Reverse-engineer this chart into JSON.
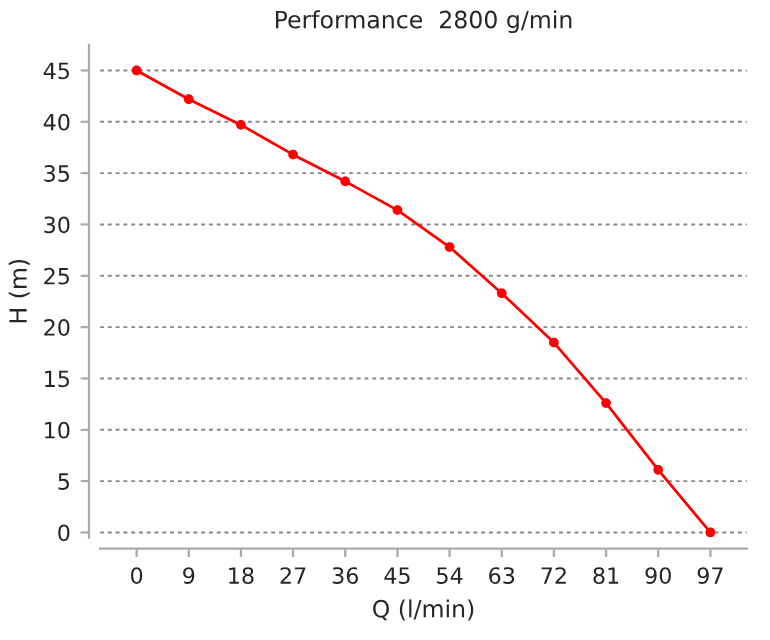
{
  "chart_data": {
    "type": "line",
    "title": "Performance  2800 g/min",
    "xlabel": "Q (l/min)",
    "ylabel": "H (m)",
    "categories": [
      "0",
      "9",
      "18",
      "27",
      "36",
      "45",
      "54",
      "63",
      "72",
      "81",
      "90",
      "97"
    ],
    "series": [
      {
        "color": "#ff0000",
        "values": [
          45,
          42.2,
          39.7,
          36.8,
          34.2,
          31.4,
          27.8,
          23.3,
          18.5,
          12.6,
          6.1,
          0
        ]
      }
    ],
    "ylim": [
      -0.5,
      47.5
    ],
    "yticks": [
      0,
      5,
      10,
      15,
      20,
      25,
      30,
      35,
      40,
      45
    ],
    "grid": "y",
    "marker": "circle",
    "line_style": "solid",
    "legend": false
  }
}
